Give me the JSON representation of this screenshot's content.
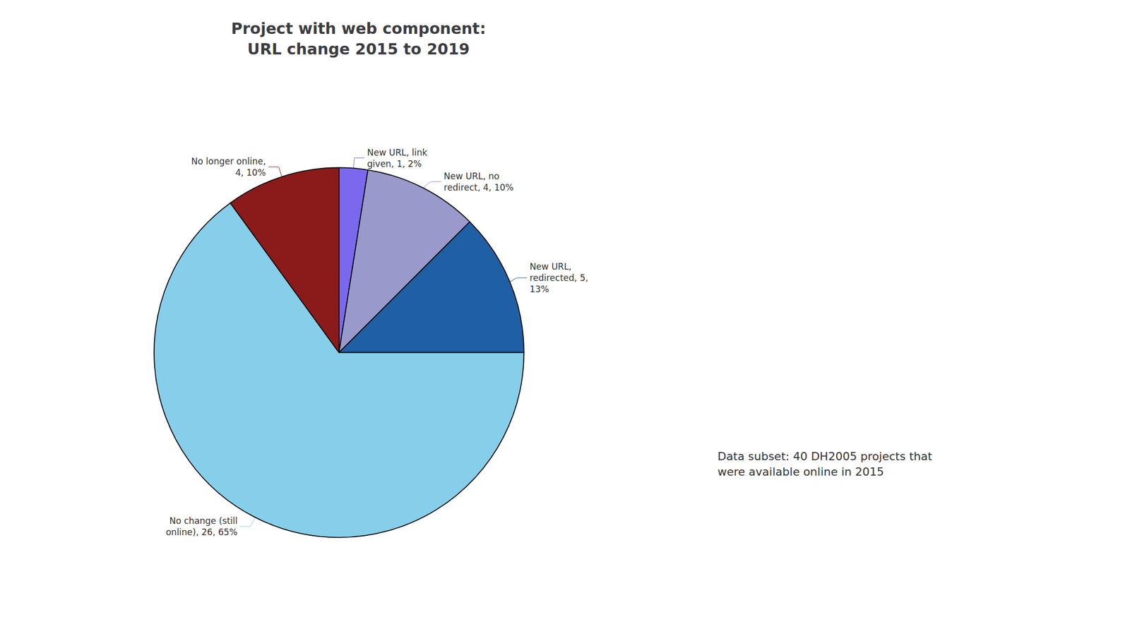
{
  "chart_data": {
    "type": "pie",
    "title": "Project with web component:\nURL change 2015 to 2019",
    "categories": [
      "New URL, link\ngiven, 1, 2%",
      "New URL, no\nredirect, 4, 10%",
      "New URL,\nredirected, 5,\n13%",
      "No change (still\nonline), 26, 65%",
      "No longer online,\n4, 10%"
    ],
    "values": [
      1,
      4,
      5,
      26,
      4
    ],
    "colors": [
      "#7B68EE",
      "#9999CC",
      "#1F5FA6",
      "#87CEEB",
      "#8B1A1A"
    ],
    "annotation": "Data subset: 40 DH2005 projects that\nwere available online in 2015"
  }
}
